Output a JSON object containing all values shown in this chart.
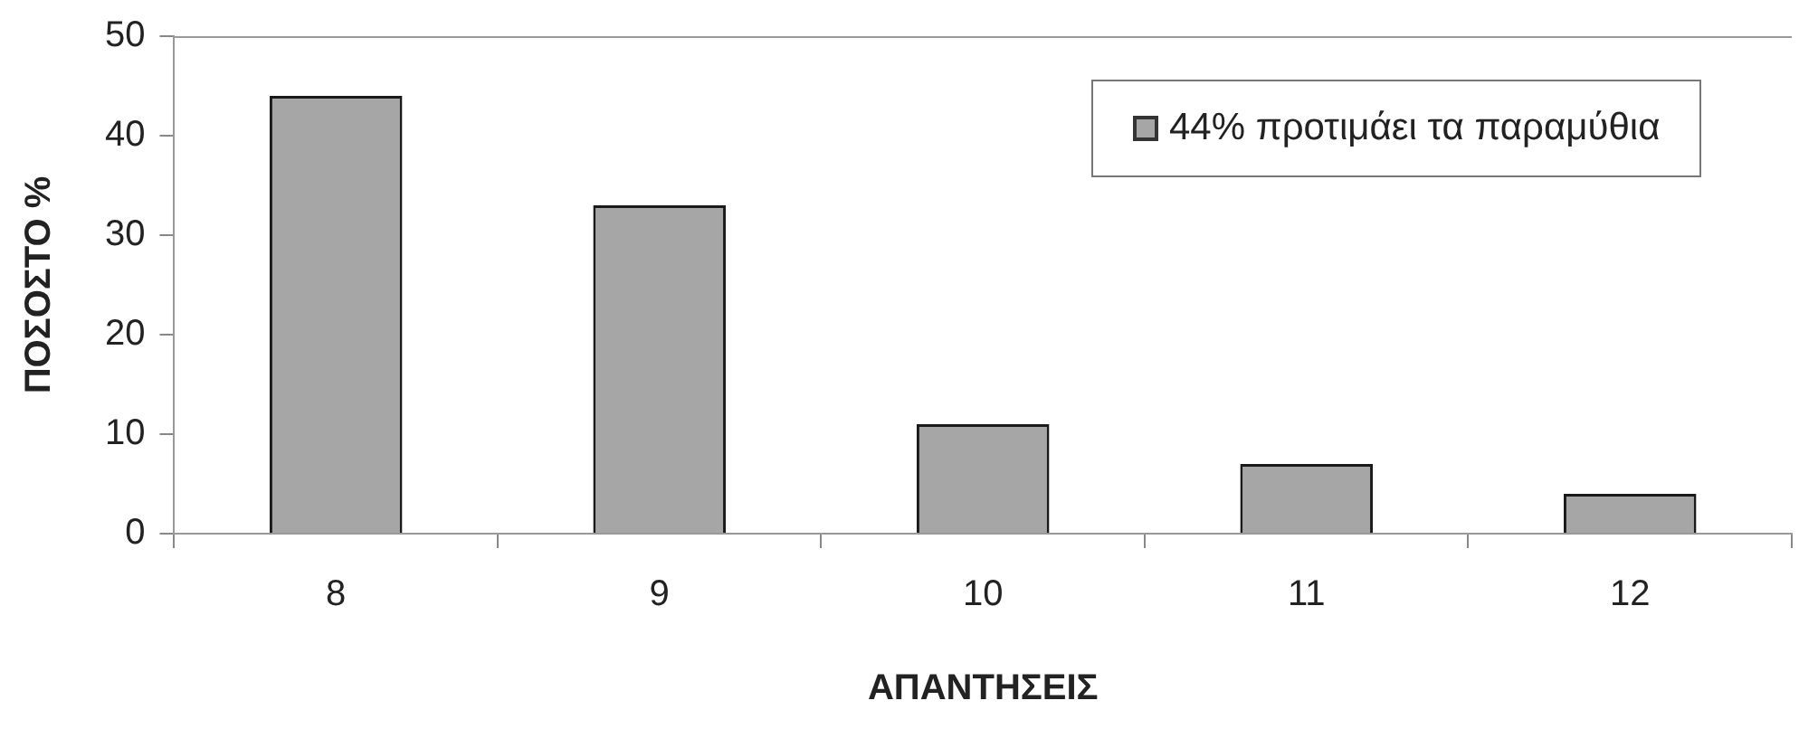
{
  "chart_data": {
    "type": "bar",
    "xlabel": "ΑΠΑΝΤΗΣΕΙΣ",
    "ylabel": "ΠΟΣΟΣΤΟ %",
    "categories": [
      "8",
      "9",
      "10",
      "11",
      "12"
    ],
    "series": [
      {
        "name": "44% προτιμάει τα παραμύθια",
        "color": "#a6a6a6",
        "values": [
          44,
          33,
          11,
          7,
          4
        ]
      }
    ],
    "ylim": [
      0,
      50
    ],
    "yticks": [
      0,
      10,
      20,
      30,
      40,
      50
    ],
    "legend": "top right"
  }
}
